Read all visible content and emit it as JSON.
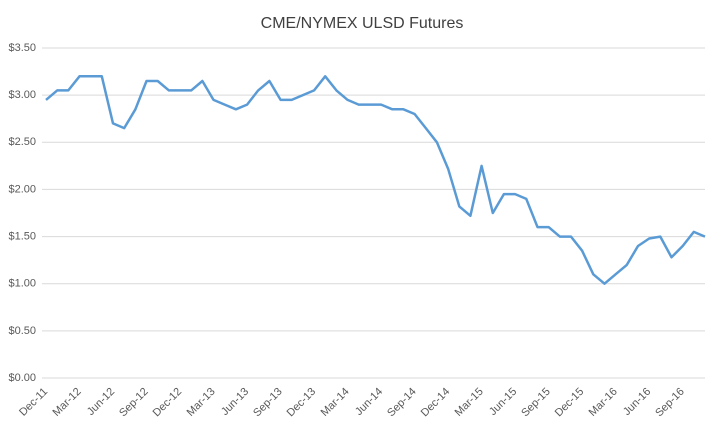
{
  "chart_data": {
    "type": "line",
    "title": "CME/NYMEX ULSD Futures",
    "categories": [
      "Dec-11",
      null,
      null,
      "Mar-12",
      null,
      null,
      "Jun-12",
      null,
      null,
      "Sep-12",
      null,
      null,
      "Dec-12",
      null,
      null,
      "Mar-13",
      null,
      null,
      "Jun-13",
      null,
      null,
      "Sep-13",
      null,
      null,
      "Dec-13",
      null,
      null,
      "Mar-14",
      null,
      null,
      "Jun-14",
      null,
      null,
      "Sep-14",
      null,
      null,
      "Dec-14",
      null,
      null,
      "Mar-15",
      null,
      null,
      "Jun-15",
      null,
      null,
      "Sep-15",
      null,
      null,
      "Dec-15",
      null,
      null,
      "Mar-16",
      null,
      null,
      "Jun-16",
      null,
      null,
      "Sep-16",
      null,
      null
    ],
    "series": [
      {
        "name": "ULSD",
        "color": "#5b9bd5",
        "values": [
          2.95,
          3.05,
          3.05,
          3.2,
          3.2,
          3.2,
          2.7,
          2.65,
          2.85,
          3.15,
          3.15,
          3.05,
          3.05,
          3.05,
          3.15,
          2.95,
          2.9,
          2.85,
          2.9,
          3.05,
          3.15,
          2.95,
          2.95,
          3.0,
          3.05,
          3.2,
          3.05,
          2.95,
          2.9,
          2.9,
          2.9,
          2.85,
          2.85,
          2.8,
          2.65,
          2.5,
          2.22,
          1.82,
          1.72,
          2.25,
          1.75,
          1.95,
          1.95,
          1.9,
          1.6,
          1.6,
          1.5,
          1.5,
          1.35,
          1.1,
          1.0,
          1.1,
          1.2,
          1.4,
          1.48,
          1.5,
          1.28,
          1.4,
          1.55,
          1.5
        ]
      }
    ],
    "ylim": [
      0,
      3.5
    ],
    "yticks": [
      {
        "value": 0,
        "label": "$0.00"
      },
      {
        "value": 0.5,
        "label": "$0.50"
      },
      {
        "value": 1,
        "label": "$1.00"
      },
      {
        "value": 1.5,
        "label": "$1.50"
      },
      {
        "value": 2,
        "label": "$2.00"
      },
      {
        "value": 2.5,
        "label": "$2.50"
      },
      {
        "value": 3,
        "label": "$3.00"
      },
      {
        "value": 3.5,
        "label": "$3.50"
      }
    ],
    "grid": true
  }
}
